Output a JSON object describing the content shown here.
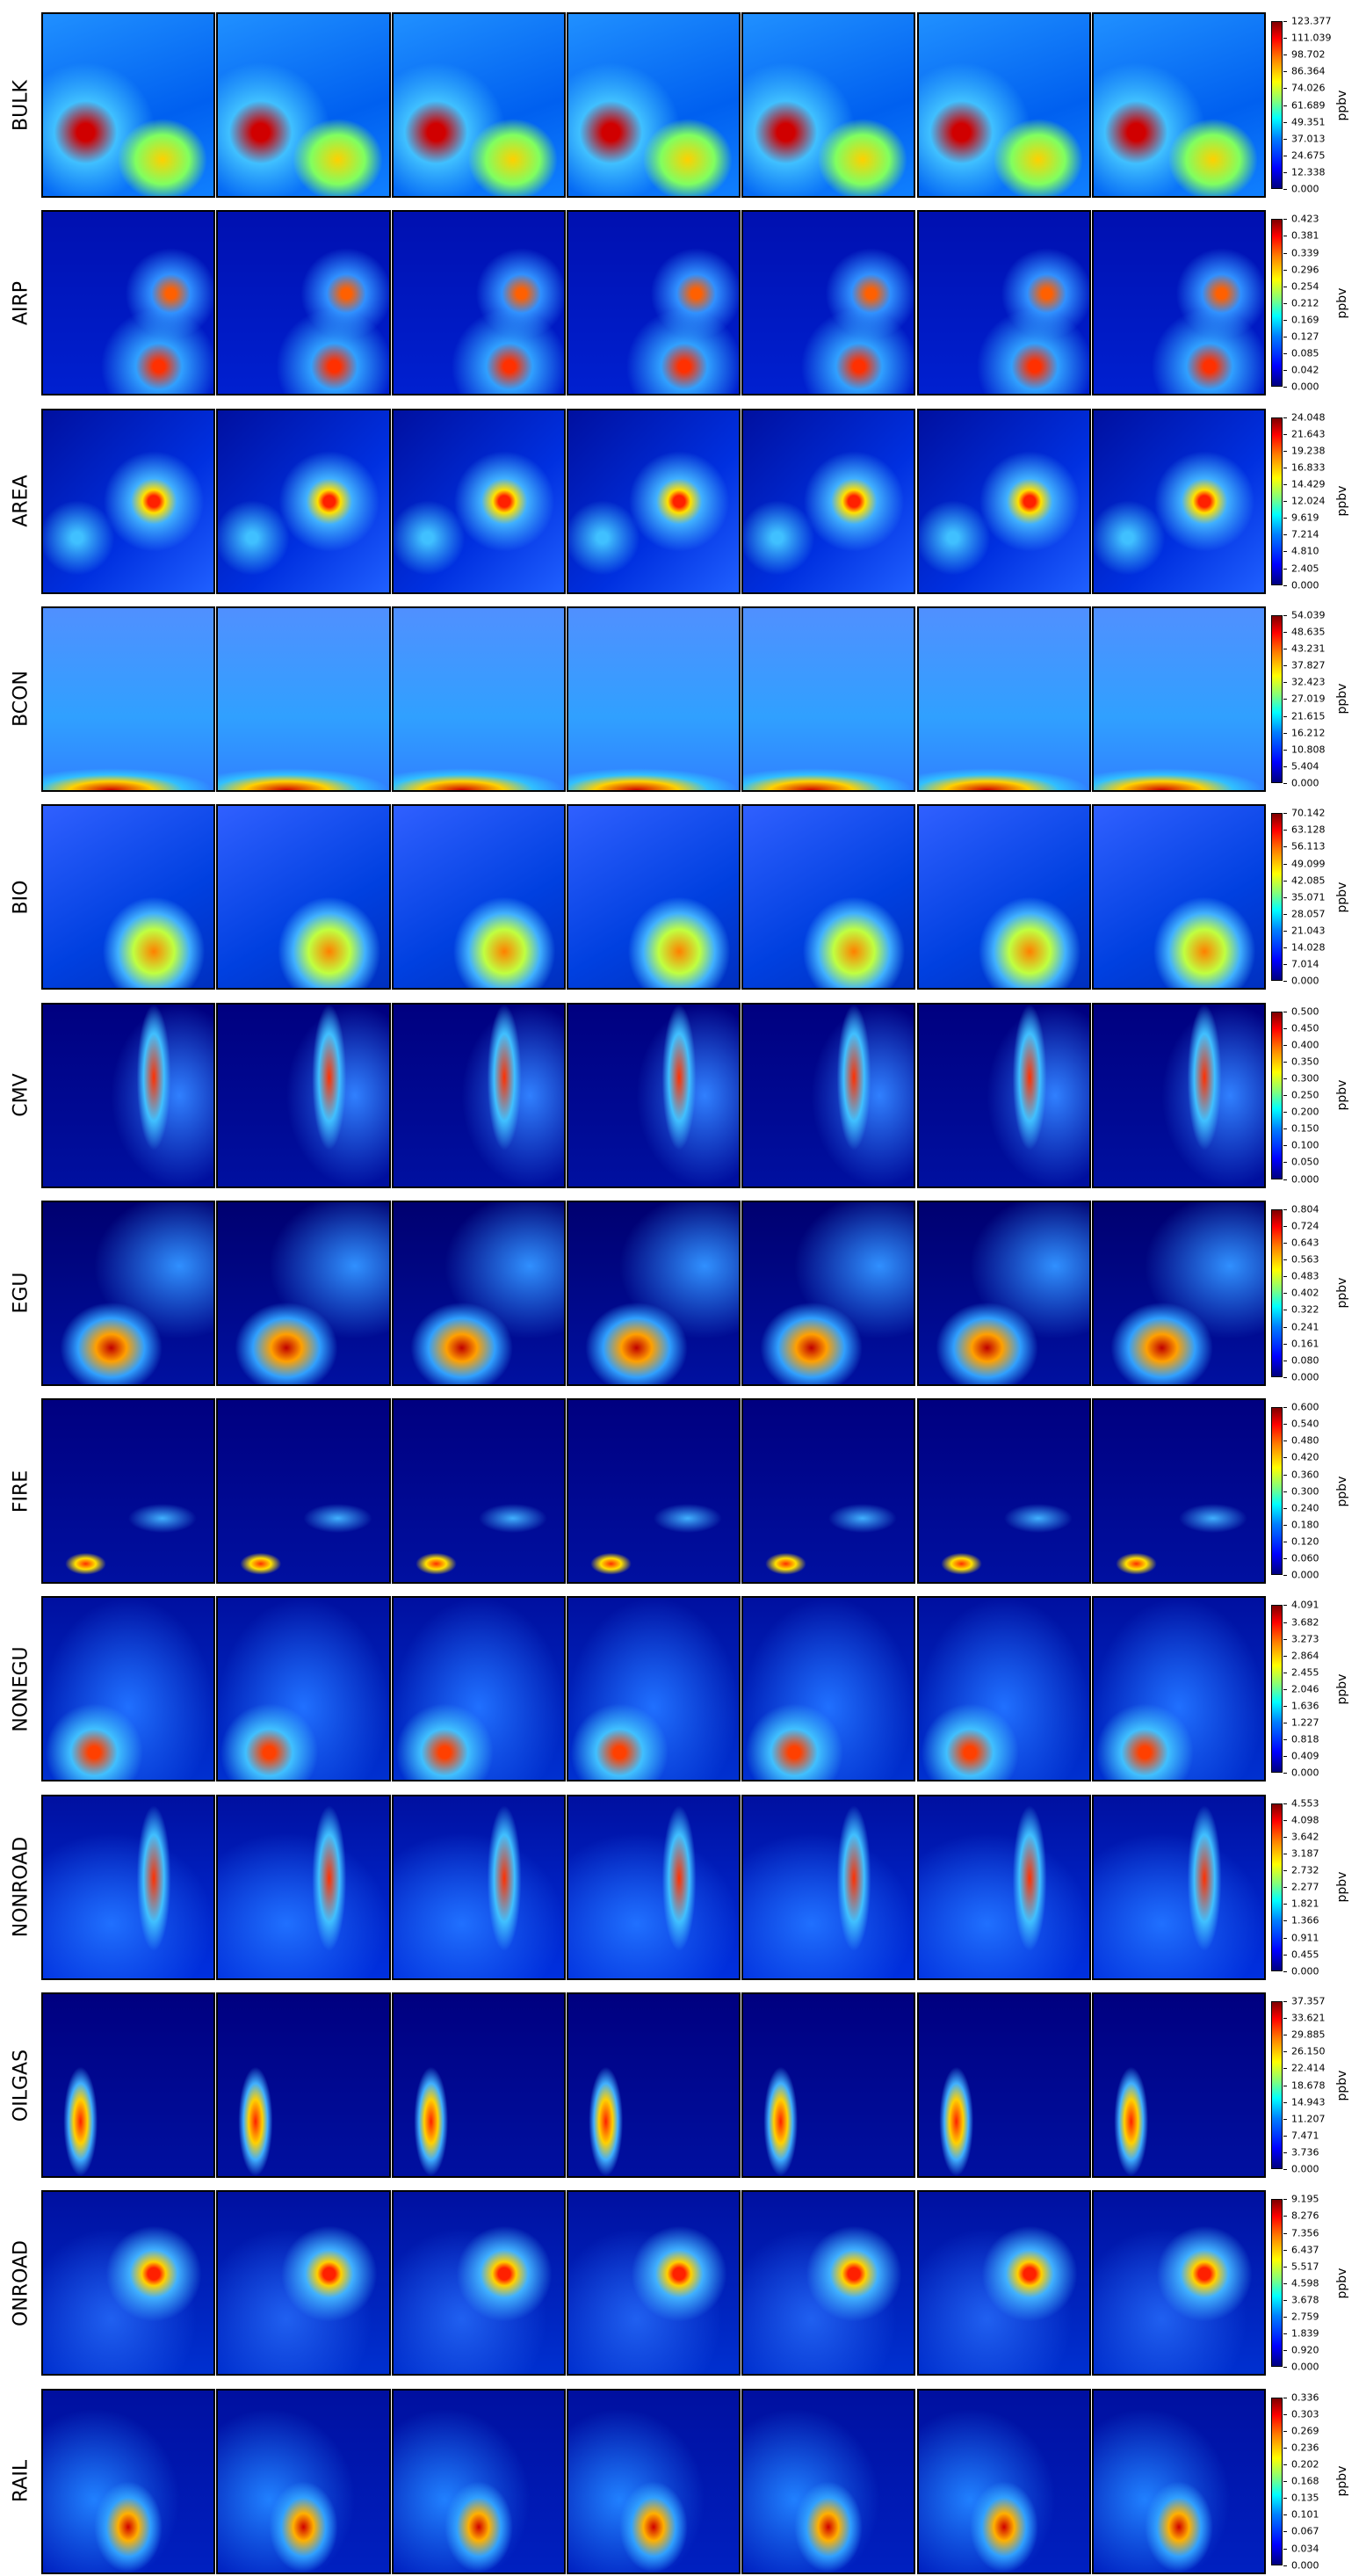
{
  "rows": [
    {
      "label": "BULK",
      "unit": "ppbv",
      "ticks": [
        "123.377",
        "111.039",
        "98.702",
        "86.364",
        "74.026",
        "61.689",
        "49.351",
        "37.013",
        "24.675",
        "12.338",
        "0.000"
      ]
    },
    {
      "label": "AIRP",
      "unit": "ppbv",
      "ticks": [
        "0.423",
        "0.381",
        "0.339",
        "0.296",
        "0.254",
        "0.212",
        "0.169",
        "0.127",
        "0.085",
        "0.042",
        "0.000"
      ]
    },
    {
      "label": "AREA",
      "unit": "ppbv",
      "ticks": [
        "24.048",
        "21.643",
        "19.238",
        "16.833",
        "14.429",
        "12.024",
        "9.619",
        "7.214",
        "4.810",
        "2.405",
        "0.000"
      ]
    },
    {
      "label": "BCON",
      "unit": "ppbv",
      "ticks": [
        "54.039",
        "48.635",
        "43.231",
        "37.827",
        "32.423",
        "27.019",
        "21.615",
        "16.212",
        "10.808",
        "5.404",
        "0.000"
      ]
    },
    {
      "label": "BIO",
      "unit": "ppbv",
      "ticks": [
        "70.142",
        "63.128",
        "56.113",
        "49.099",
        "42.085",
        "35.071",
        "28.057",
        "21.043",
        "14.028",
        "7.014",
        "0.000"
      ]
    },
    {
      "label": "CMV",
      "unit": "ppbv",
      "ticks": [
        "0.500",
        "0.450",
        "0.400",
        "0.350",
        "0.300",
        "0.250",
        "0.200",
        "0.150",
        "0.100",
        "0.050",
        "0.000"
      ]
    },
    {
      "label": "EGU",
      "unit": "ppbv",
      "ticks": [
        "0.804",
        "0.724",
        "0.643",
        "0.563",
        "0.483",
        "0.402",
        "0.322",
        "0.241",
        "0.161",
        "0.080",
        "0.000"
      ]
    },
    {
      "label": "FIRE",
      "unit": "ppbv",
      "ticks": [
        "0.600",
        "0.540",
        "0.480",
        "0.420",
        "0.360",
        "0.300",
        "0.240",
        "0.180",
        "0.120",
        "0.060",
        "0.000"
      ]
    },
    {
      "label": "NONEGU",
      "unit": "ppbv",
      "ticks": [
        "4.091",
        "3.682",
        "3.273",
        "2.864",
        "2.455",
        "2.046",
        "1.636",
        "1.227",
        "0.818",
        "0.409",
        "0.000"
      ]
    },
    {
      "label": "NONROAD",
      "unit": "ppbv",
      "ticks": [
        "4.553",
        "4.098",
        "3.642",
        "3.187",
        "2.732",
        "2.277",
        "1.821",
        "1.366",
        "0.911",
        "0.455",
        "0.000"
      ]
    },
    {
      "label": "OILGAS",
      "unit": "ppbv",
      "ticks": [
        "37.357",
        "33.621",
        "29.885",
        "26.150",
        "22.414",
        "18.678",
        "14.943",
        "11.207",
        "7.471",
        "3.736",
        "0.000"
      ]
    },
    {
      "label": "ONROAD",
      "unit": "ppbv",
      "ticks": [
        "9.195",
        "8.276",
        "7.356",
        "6.437",
        "5.517",
        "4.598",
        "3.678",
        "2.759",
        "1.839",
        "0.920",
        "0.000"
      ]
    },
    {
      "label": "RAIL",
      "unit": "ppbv",
      "ticks": [
        "0.336",
        "0.303",
        "0.269",
        "0.236",
        "0.202",
        "0.168",
        "0.135",
        "0.101",
        "0.067",
        "0.034",
        "0.000"
      ]
    }
  ]
}
